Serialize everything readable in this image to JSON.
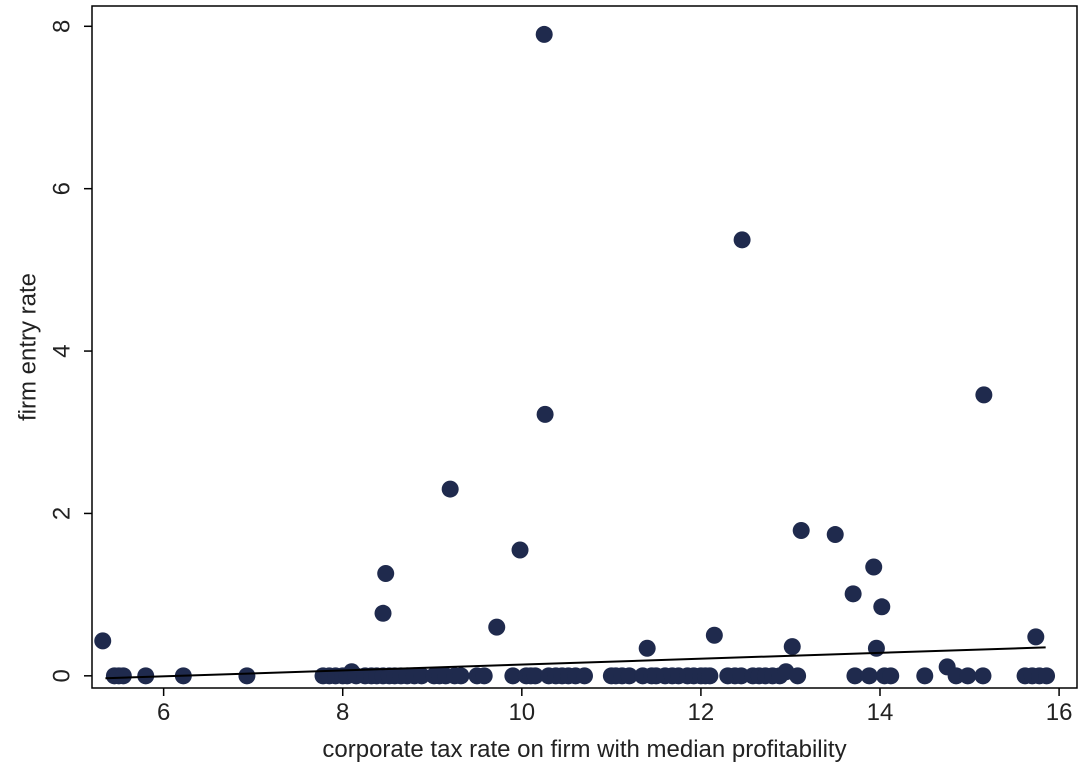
{
  "chart_data": {
    "type": "scatter",
    "title": "",
    "xlabel": "corporate tax rate on firm with median profitability",
    "ylabel": "firm entry rate",
    "xlim": [
      5.2,
      16.2
    ],
    "ylim": [
      -0.15,
      8.25
    ],
    "xticks": [
      6,
      8,
      10,
      12,
      14,
      16
    ],
    "yticks": [
      0,
      2,
      4,
      6,
      8
    ],
    "grid": false,
    "legend": "none",
    "colors": {
      "points": "#1f2a4d",
      "fit_line": "#000000",
      "frame": "#000000"
    },
    "points": [
      {
        "x": 5.32,
        "y": 0.43
      },
      {
        "x": 5.45,
        "y": 0.0
      },
      {
        "x": 5.5,
        "y": 0.0
      },
      {
        "x": 5.55,
        "y": 0.0
      },
      {
        "x": 5.8,
        "y": 0.0
      },
      {
        "x": 6.22,
        "y": 0.0
      },
      {
        "x": 6.93,
        "y": 0.0
      },
      {
        "x": 7.78,
        "y": 0.0
      },
      {
        "x": 7.85,
        "y": 0.0
      },
      {
        "x": 7.92,
        "y": 0.0
      },
      {
        "x": 8.0,
        "y": 0.0
      },
      {
        "x": 8.05,
        "y": 0.0
      },
      {
        "x": 8.1,
        "y": 0.05
      },
      {
        "x": 8.15,
        "y": 0.0
      },
      {
        "x": 8.25,
        "y": 0.0
      },
      {
        "x": 8.32,
        "y": 0.0
      },
      {
        "x": 8.38,
        "y": 0.0
      },
      {
        "x": 8.45,
        "y": 0.0
      },
      {
        "x": 8.45,
        "y": 0.77
      },
      {
        "x": 8.48,
        "y": 1.26
      },
      {
        "x": 8.52,
        "y": 0.0
      },
      {
        "x": 8.58,
        "y": 0.0
      },
      {
        "x": 8.65,
        "y": 0.0
      },
      {
        "x": 8.72,
        "y": 0.0
      },
      {
        "x": 8.8,
        "y": 0.0
      },
      {
        "x": 8.88,
        "y": 0.0
      },
      {
        "x": 9.02,
        "y": 0.0
      },
      {
        "x": 9.08,
        "y": 0.0
      },
      {
        "x": 9.15,
        "y": 0.0
      },
      {
        "x": 9.2,
        "y": 2.3
      },
      {
        "x": 9.25,
        "y": 0.0
      },
      {
        "x": 9.32,
        "y": 0.0
      },
      {
        "x": 9.5,
        "y": 0.0
      },
      {
        "x": 9.58,
        "y": 0.0
      },
      {
        "x": 9.72,
        "y": 0.6
      },
      {
        "x": 9.9,
        "y": 0.0
      },
      {
        "x": 9.98,
        "y": 1.55
      },
      {
        "x": 10.05,
        "y": 0.0
      },
      {
        "x": 10.1,
        "y": 0.0
      },
      {
        "x": 10.15,
        "y": 0.0
      },
      {
        "x": 10.25,
        "y": 7.9
      },
      {
        "x": 10.26,
        "y": 3.22
      },
      {
        "x": 10.3,
        "y": 0.0
      },
      {
        "x": 10.38,
        "y": 0.0
      },
      {
        "x": 10.45,
        "y": 0.0
      },
      {
        "x": 10.52,
        "y": 0.0
      },
      {
        "x": 10.6,
        "y": 0.0
      },
      {
        "x": 10.7,
        "y": 0.0
      },
      {
        "x": 11.0,
        "y": 0.0
      },
      {
        "x": 11.05,
        "y": 0.0
      },
      {
        "x": 11.12,
        "y": 0.0
      },
      {
        "x": 11.2,
        "y": 0.0
      },
      {
        "x": 11.35,
        "y": 0.0
      },
      {
        "x": 11.4,
        "y": 0.34
      },
      {
        "x": 11.45,
        "y": 0.0
      },
      {
        "x": 11.5,
        "y": 0.0
      },
      {
        "x": 11.6,
        "y": 0.0
      },
      {
        "x": 11.68,
        "y": 0.0
      },
      {
        "x": 11.75,
        "y": 0.0
      },
      {
        "x": 11.85,
        "y": 0.0
      },
      {
        "x": 11.92,
        "y": 0.0
      },
      {
        "x": 12.0,
        "y": 0.0
      },
      {
        "x": 12.05,
        "y": 0.0
      },
      {
        "x": 12.1,
        "y": 0.0
      },
      {
        "x": 12.15,
        "y": 0.5
      },
      {
        "x": 12.3,
        "y": 0.0
      },
      {
        "x": 12.38,
        "y": 0.0
      },
      {
        "x": 12.45,
        "y": 0.0
      },
      {
        "x": 12.46,
        "y": 5.37
      },
      {
        "x": 12.58,
        "y": 0.0
      },
      {
        "x": 12.65,
        "y": 0.0
      },
      {
        "x": 12.72,
        "y": 0.0
      },
      {
        "x": 12.8,
        "y": 0.0
      },
      {
        "x": 12.88,
        "y": 0.0
      },
      {
        "x": 12.95,
        "y": 0.05
      },
      {
        "x": 13.02,
        "y": 0.36
      },
      {
        "x": 13.08,
        "y": 0.0
      },
      {
        "x": 13.12,
        "y": 1.79
      },
      {
        "x": 13.5,
        "y": 1.74
      },
      {
        "x": 13.7,
        "y": 1.01
      },
      {
        "x": 13.72,
        "y": 0.0
      },
      {
        "x": 13.88,
        "y": 0.0
      },
      {
        "x": 13.93,
        "y": 1.34
      },
      {
        "x": 13.96,
        "y": 0.34
      },
      {
        "x": 14.02,
        "y": 0.85
      },
      {
        "x": 14.05,
        "y": 0.0
      },
      {
        "x": 14.12,
        "y": 0.0
      },
      {
        "x": 14.5,
        "y": 0.0
      },
      {
        "x": 14.75,
        "y": 0.11
      },
      {
        "x": 14.85,
        "y": 0.0
      },
      {
        "x": 14.98,
        "y": 0.0
      },
      {
        "x": 15.15,
        "y": 0.0
      },
      {
        "x": 15.16,
        "y": 3.46
      },
      {
        "x": 15.62,
        "y": 0.0
      },
      {
        "x": 15.7,
        "y": 0.0
      },
      {
        "x": 15.74,
        "y": 0.48
      },
      {
        "x": 15.78,
        "y": 0.0
      },
      {
        "x": 15.86,
        "y": 0.0
      }
    ],
    "fit_line": {
      "x": [
        5.35,
        15.85
      ],
      "y": [
        -0.03,
        0.35
      ]
    }
  }
}
